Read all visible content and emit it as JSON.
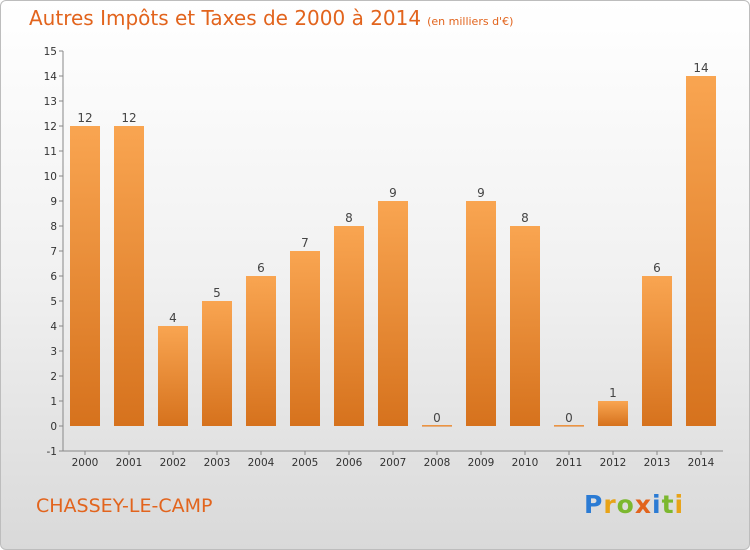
{
  "title": "Autres Impôts et Taxes de 2000 à 2014",
  "unit_label": "(en milliers d'€)",
  "location": "CHASSEY-LE-CAMP",
  "logo": {
    "letters": [
      "P",
      "r",
      "o",
      "x",
      "i",
      "t",
      "i"
    ],
    "colors": [
      "#2b7bd4",
      "#e8a317",
      "#7cb82f",
      "#e2641d",
      "#2b7bd4",
      "#7cb82f",
      "#e8a317"
    ]
  },
  "colors": {
    "bar_light": "#f9a551",
    "bar_dark": "#d6721d",
    "accent": "#e2641d"
  },
  "chart_data": {
    "type": "bar",
    "title": "Autres Impôts et Taxes de 2000 à 2014",
    "xlabel": "",
    "ylabel": "",
    "categories": [
      "2000",
      "2001",
      "2002",
      "2003",
      "2004",
      "2005",
      "2006",
      "2007",
      "2008",
      "2009",
      "2010",
      "2011",
      "2012",
      "2013",
      "2014"
    ],
    "values": [
      12,
      12,
      4,
      5,
      6,
      7,
      8,
      9,
      0,
      9,
      8,
      0,
      1,
      6,
      14
    ],
    "ylim": [
      -1,
      15
    ],
    "yticks": [
      "-1",
      "0",
      "1",
      "2",
      "3",
      "4",
      "5",
      "6",
      "7",
      "8",
      "9",
      "10",
      "11",
      "12",
      "13",
      "14",
      "15"
    ],
    "grid": false,
    "legend": "none"
  }
}
